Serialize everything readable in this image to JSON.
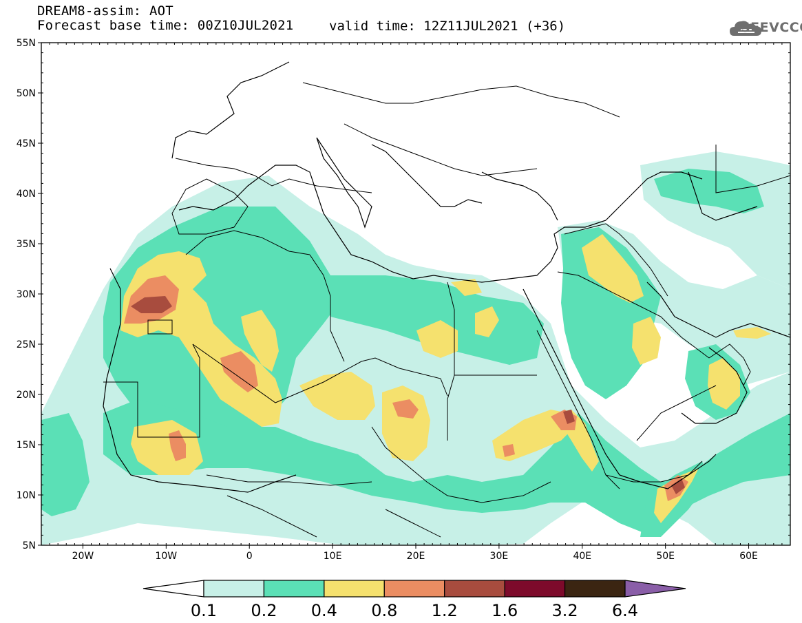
{
  "header": {
    "title_line1": "DREAM8-assim: AOT",
    "title_line2": "Forecast base time: 00Z10JUL2021",
    "valid_time": "valid time: 12Z11JUL2021 (+36)",
    "logo_text": "SEEVCCC"
  },
  "map": {
    "lon_ticks": [
      "20W",
      "10W",
      "0",
      "10E",
      "20E",
      "30E",
      "40E",
      "50E",
      "60E"
    ],
    "lat_ticks": [
      "55N",
      "50N",
      "45N",
      "40N",
      "35N",
      "30N",
      "25N",
      "20N",
      "15N",
      "10N",
      "5N"
    ],
    "lon_range": [
      -25,
      65
    ],
    "lat_range": [
      5,
      55
    ]
  },
  "colorbar": {
    "labels": [
      "0.1",
      "0.2",
      "0.4",
      "0.8",
      "1.2",
      "1.6",
      "3.2",
      "6.4"
    ],
    "colors": [
      "#ffffff",
      "#c7f0e7",
      "#5be0b6",
      "#f5e16e",
      "#eb8d62",
      "#a84c3e",
      "#7d0a2b",
      "#3b2512",
      "#8a5ea8"
    ]
  },
  "colors": {
    "aot_0_1": "#c7f0e7",
    "aot_0_2": "#5be0b6",
    "aot_0_4": "#f5e16e",
    "aot_0_8": "#eb8d62",
    "aot_1_2": "#a84c3e",
    "aot_1_6": "#7d0a2b"
  }
}
